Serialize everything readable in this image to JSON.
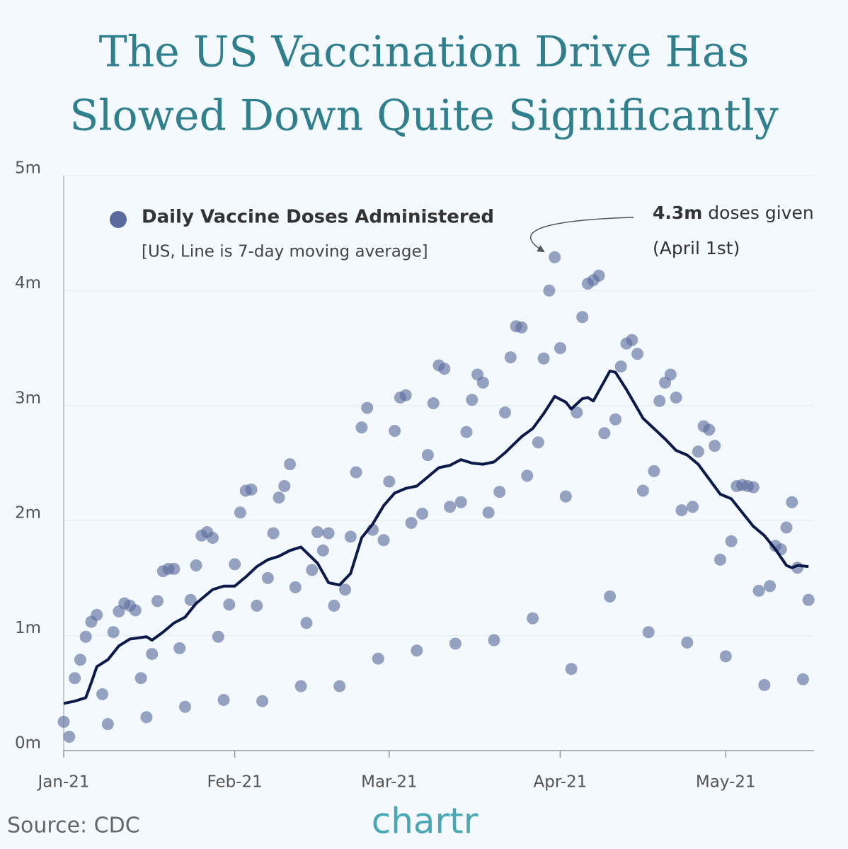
{
  "chart_data": {
    "type": "scatter",
    "title": [
      "The US Vaccination Drive Has",
      "Slowed Down Quite Significantly"
    ],
    "subtitle": "[US, Line is 7-day moving average]",
    "annotation": {
      "value_text": "4.3m",
      "text": "doses given",
      "date": "(April 1st)"
    },
    "source": "Source: CDC",
    "brand": "chartr",
    "xlim": [
      0,
      136
    ],
    "xticks": [
      {
        "value": 0,
        "label": "Jan-21"
      },
      {
        "value": 31,
        "label": "Feb-21"
      },
      {
        "value": 59,
        "label": "Mar-21"
      },
      {
        "value": 90,
        "label": "Apr-21"
      },
      {
        "value": 120,
        "label": "May-21"
      }
    ],
    "ylim": [
      0,
      5
    ],
    "yticks": [
      {
        "value": 0,
        "label": "0m"
      },
      {
        "value": 1,
        "label": "1m"
      },
      {
        "value": 2,
        "label": "2m"
      },
      {
        "value": 3,
        "label": "3m"
      },
      {
        "value": 4,
        "label": "4m"
      },
      {
        "value": 5,
        "label": "5m"
      }
    ],
    "grid": true,
    "series": [
      {
        "name": "Daily Vaccine Doses Administered",
        "color": "#5b6a9c",
        "x": [
          0,
          1,
          2,
          3,
          4,
          5,
          6,
          7,
          8,
          9,
          10,
          11,
          12,
          13,
          14,
          15,
          16,
          17,
          18,
          19,
          20,
          21,
          22,
          23,
          24,
          25,
          26,
          27,
          28,
          29,
          30,
          31,
          32,
          33,
          34,
          35,
          36,
          37,
          38,
          39,
          40,
          41,
          42,
          43,
          44,
          45,
          46,
          47,
          48,
          49,
          50,
          51,
          52,
          53,
          54,
          55,
          56,
          57,
          58,
          59,
          60,
          61,
          62,
          63,
          64,
          65,
          66,
          67,
          68,
          69,
          70,
          71,
          72,
          73,
          74,
          75,
          76,
          77,
          78,
          79,
          80,
          81,
          82,
          83,
          84,
          85,
          86,
          87,
          88,
          89,
          90,
          91,
          92,
          93,
          94,
          95,
          96,
          97,
          98,
          99,
          100,
          101,
          102,
          103,
          104,
          105,
          106,
          107,
          108,
          109,
          110,
          111,
          112,
          113,
          114,
          115,
          116,
          117,
          118,
          119,
          120,
          121,
          122,
          123,
          124,
          125,
          126,
          127,
          128,
          129,
          130,
          131,
          132,
          133,
          134,
          135
        ],
        "values": [
          0.25,
          0.12,
          0.63,
          0.79,
          0.99,
          1.12,
          1.18,
          0.49,
          0.23,
          1.03,
          1.21,
          1.28,
          1.26,
          1.22,
          0.63,
          0.29,
          0.84,
          1.3,
          1.56,
          1.58,
          1.58,
          0.89,
          0.38,
          1.31,
          1.61,
          1.87,
          1.9,
          1.85,
          0.99,
          0.44,
          1.27,
          1.62,
          2.07,
          2.26,
          2.27,
          1.26,
          0.43,
          1.5,
          1.89,
          2.2,
          2.3,
          2.49,
          1.42,
          0.56,
          1.11,
          1.57,
          1.9,
          1.74,
          1.89,
          1.26,
          0.56,
          1.4,
          1.86,
          2.42,
          2.81,
          2.98,
          1.92,
          0.8,
          1.83,
          2.34,
          2.78,
          3.07,
          3.09,
          1.98,
          0.87,
          2.06,
          2.57,
          3.02,
          3.35,
          3.32,
          2.12,
          0.93,
          2.16,
          2.77,
          3.05,
          3.27,
          3.2,
          2.07,
          0.96,
          2.25,
          2.94,
          3.42,
          3.69,
          3.68,
          2.39,
          1.15,
          2.68,
          3.41,
          4.0,
          4.29,
          3.5,
          2.21,
          0.71,
          2.94,
          3.77,
          4.06,
          4.09,
          4.13,
          2.76,
          1.34,
          2.88,
          3.34,
          3.54,
          3.57,
          3.45,
          2.26,
          1.03,
          2.43,
          3.04,
          3.2,
          3.27,
          3.07,
          2.09,
          0.94,
          2.12,
          2.6,
          2.82,
          2.79,
          2.65,
          1.66,
          0.82,
          1.82,
          2.3,
          2.31,
          2.3,
          2.29,
          1.39,
          0.57,
          1.43,
          1.78,
          1.75,
          1.94,
          2.16,
          1.59,
          0.62,
          1.31
        ]
      },
      {
        "type": "line",
        "color": "#0c1a4b",
        "x": [
          0,
          2,
          4,
          5,
          6,
          8,
          10,
          12,
          15,
          16,
          18,
          20,
          22,
          24,
          27,
          29,
          31,
          33,
          35,
          37,
          39,
          41,
          43,
          46,
          48,
          50,
          52,
          54,
          56,
          58,
          60,
          62,
          64,
          66,
          68,
          70,
          72,
          74,
          76,
          78,
          80,
          83,
          85,
          87,
          89,
          91,
          92,
          94,
          95,
          96,
          99,
          100,
          102,
          105,
          107,
          109,
          111,
          113,
          115,
          117,
          119,
          121,
          123,
          125,
          127,
          129,
          131,
          132,
          133,
          135
        ],
        "values": [
          0.41,
          0.43,
          0.46,
          0.59,
          0.73,
          0.79,
          0.91,
          0.97,
          0.99,
          0.96,
          1.03,
          1.11,
          1.16,
          1.28,
          1.4,
          1.43,
          1.43,
          1.51,
          1.6,
          1.66,
          1.69,
          1.74,
          1.77,
          1.63,
          1.46,
          1.44,
          1.54,
          1.85,
          1.97,
          2.13,
          2.24,
          2.28,
          2.3,
          2.38,
          2.46,
          2.48,
          2.53,
          2.5,
          2.49,
          2.51,
          2.59,
          2.73,
          2.8,
          2.93,
          3.08,
          3.03,
          2.97,
          3.06,
          3.07,
          3.04,
          3.3,
          3.29,
          3.14,
          2.89,
          2.8,
          2.71,
          2.61,
          2.57,
          2.49,
          2.36,
          2.23,
          2.19,
          2.07,
          1.95,
          1.87,
          1.75,
          1.61,
          1.59,
          1.61,
          1.6
        ]
      }
    ]
  }
}
